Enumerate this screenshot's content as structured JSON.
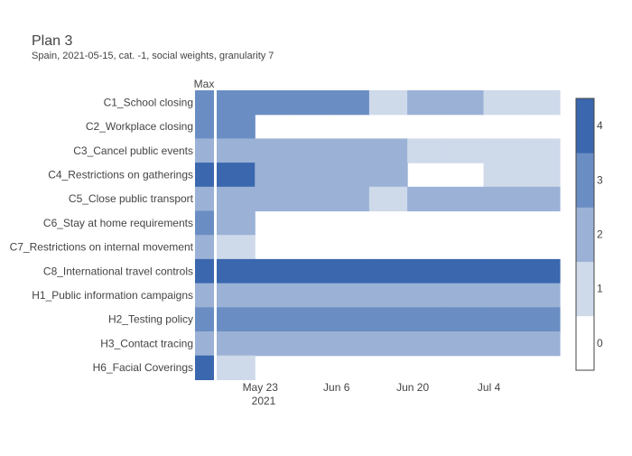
{
  "chart_data": {
    "type": "heatmap",
    "title": "Plan 3",
    "subtitle": "Spain, 2021-05-15, cat. -1, social weights, granularity 7",
    "max_column_label": "Max",
    "rows": [
      "C1_School closing",
      "C2_Workplace closing",
      "C3_Cancel public events",
      "C4_Restrictions on gatherings",
      "C5_Close public transport",
      "C6_Stay at home requirements",
      "C7_Restrictions on internal movement",
      "C8_International travel controls",
      "H1_Public information campaigns",
      "H2_Testing policy",
      "H3_Contact tracing",
      "H6_Facial Coverings"
    ],
    "x_tick_labels": [
      "May 23",
      "Jun 6",
      "Jun 20",
      "Jul 4"
    ],
    "x_year_label": "2021",
    "week_start_dates": [
      "2021-05-15",
      "2021-05-22",
      "2021-05-29",
      "2021-06-05",
      "2021-06-12",
      "2021-06-19",
      "2021-06-26",
      "2021-07-03",
      "2021-07-10"
    ],
    "max_values": [
      3,
      3,
      2,
      4,
      2,
      3,
      2,
      4,
      2,
      3,
      2,
      4
    ],
    "plan": [
      [
        3,
        3,
        3,
        3,
        1,
        2,
        2,
        1,
        1
      ],
      [
        3,
        null,
        null,
        null,
        null,
        null,
        null,
        null,
        null
      ],
      [
        2,
        2,
        2,
        2,
        2,
        1,
        1,
        1,
        1
      ],
      [
        4,
        2,
        2,
        2,
        2,
        null,
        null,
        1,
        1
      ],
      [
        2,
        2,
        2,
        2,
        1,
        2,
        2,
        2,
        2
      ],
      [
        2,
        null,
        null,
        null,
        null,
        null,
        null,
        null,
        null
      ],
      [
        1,
        null,
        null,
        null,
        null,
        null,
        null,
        null,
        null
      ],
      [
        4,
        4,
        4,
        4,
        4,
        4,
        4,
        4,
        4
      ],
      [
        2,
        2,
        2,
        2,
        2,
        2,
        2,
        2,
        2
      ],
      [
        3,
        3,
        3,
        3,
        3,
        3,
        3,
        3,
        3
      ],
      [
        2,
        2,
        2,
        2,
        2,
        2,
        2,
        2,
        2
      ],
      [
        1,
        null,
        null,
        null,
        null,
        null,
        null,
        null,
        null
      ]
    ],
    "colorscale": [
      "#ffffff",
      "#ced9ea",
      "#9bb2d6",
      "#6a8ec3",
      "#3a67ae"
    ],
    "colorbar_ticks": [
      0,
      1,
      2,
      3,
      4
    ],
    "zmin": -0.5,
    "zmax": 4.5
  }
}
